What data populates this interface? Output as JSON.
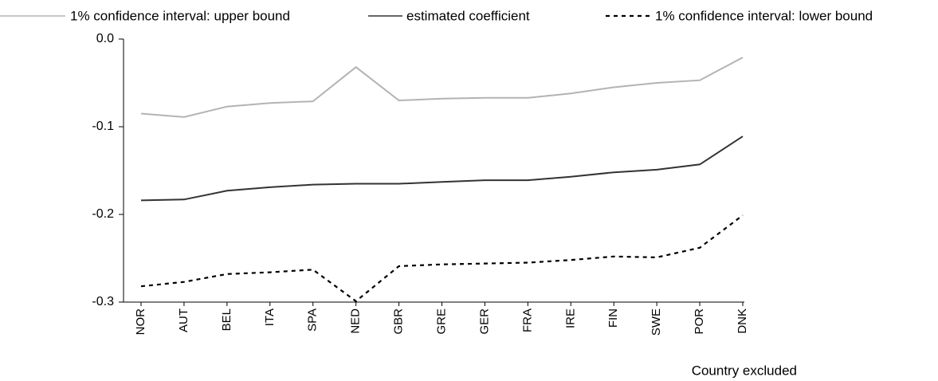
{
  "chart_data": {
    "type": "line",
    "x_label": "Country excluded",
    "categories": [
      "NOR",
      "AUT",
      "BEL",
      "ITA",
      "SPA",
      "NED",
      "GBR",
      "GRE",
      "GER",
      "FRA",
      "IRE",
      "FIN",
      "SWE",
      "POR",
      "DNK"
    ],
    "series": [
      {
        "name": "1% confidence interval: upper bound",
        "color": "#b3b3b3",
        "style": "solid",
        "values": [
          -0.085,
          -0.089,
          -0.077,
          -0.073,
          -0.071,
          -0.032,
          -0.07,
          -0.068,
          -0.067,
          -0.067,
          -0.062,
          -0.055,
          -0.05,
          -0.047,
          -0.021
        ]
      },
      {
        "name": "estimated coefficient",
        "color": "#333333",
        "style": "solid",
        "values": [
          -0.184,
          -0.183,
          -0.173,
          -0.169,
          -0.166,
          -0.165,
          -0.165,
          -0.163,
          -0.161,
          -0.161,
          -0.157,
          -0.152,
          -0.149,
          -0.143,
          -0.111
        ]
      },
      {
        "name": "1% confidence interval: lower bound",
        "color": "#000000",
        "style": "dotted",
        "values": [
          -0.282,
          -0.277,
          -0.268,
          -0.266,
          -0.263,
          -0.299,
          -0.259,
          -0.257,
          -0.256,
          -0.255,
          -0.252,
          -0.248,
          -0.249,
          -0.238,
          -0.201
        ]
      }
    ],
    "ylim": [
      -0.3,
      0
    ],
    "yticks": [
      {
        "value": 0,
        "label": "0.0"
      },
      -0.1,
      -0.2,
      -0.3
    ],
    "grid": false,
    "legend": "top"
  }
}
